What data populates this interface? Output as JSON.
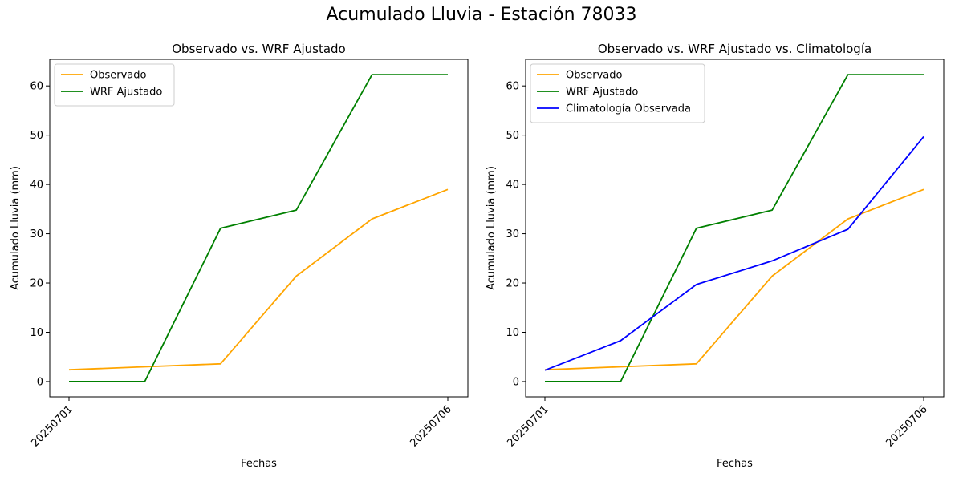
{
  "figure": {
    "title": "Acumulado Lluvia - Estación 78033"
  },
  "chart_data": [
    {
      "type": "line",
      "title": "Observado vs. WRF Ajustado",
      "xlabel": "Fechas",
      "ylabel": "Acumulado Lluvia (mm)",
      "x_tick_labels": [
        "20250701",
        "20250706"
      ],
      "ylim": [
        -3.1,
        65.4
      ],
      "yticks": [
        0,
        10,
        20,
        30,
        40,
        50,
        60
      ],
      "legend_position": "upper-left",
      "series": [
        {
          "name": "Observado",
          "color": "#ffa500",
          "values": [
            2.4,
            3.0,
            3.6,
            21.4,
            33.0,
            39.0
          ]
        },
        {
          "name": "WRF Ajustado",
          "color": "#008000",
          "values": [
            0,
            0,
            31.1,
            34.8,
            62.3,
            62.3
          ]
        }
      ]
    },
    {
      "type": "line",
      "title": "Observado vs. WRF Ajustado vs. Climatología",
      "xlabel": "Fechas",
      "ylabel": "Acumulado Lluvia (mm)",
      "x_tick_labels": [
        "20250701",
        "20250706"
      ],
      "ylim": [
        -3.1,
        65.4
      ],
      "yticks": [
        0,
        10,
        20,
        30,
        40,
        50,
        60
      ],
      "legend_position": "upper-left",
      "series": [
        {
          "name": "Observado",
          "color": "#ffa500",
          "values": [
            2.4,
            3.0,
            3.6,
            21.4,
            33.0,
            39.0
          ]
        },
        {
          "name": "WRF Ajustado",
          "color": "#008000",
          "values": [
            0,
            0,
            31.1,
            34.8,
            62.3,
            62.3
          ]
        },
        {
          "name": "Climatología Observada",
          "color": "#0000ff",
          "values": [
            2.3,
            8.3,
            19.7,
            24.5,
            30.9,
            49.7
          ]
        }
      ]
    }
  ]
}
